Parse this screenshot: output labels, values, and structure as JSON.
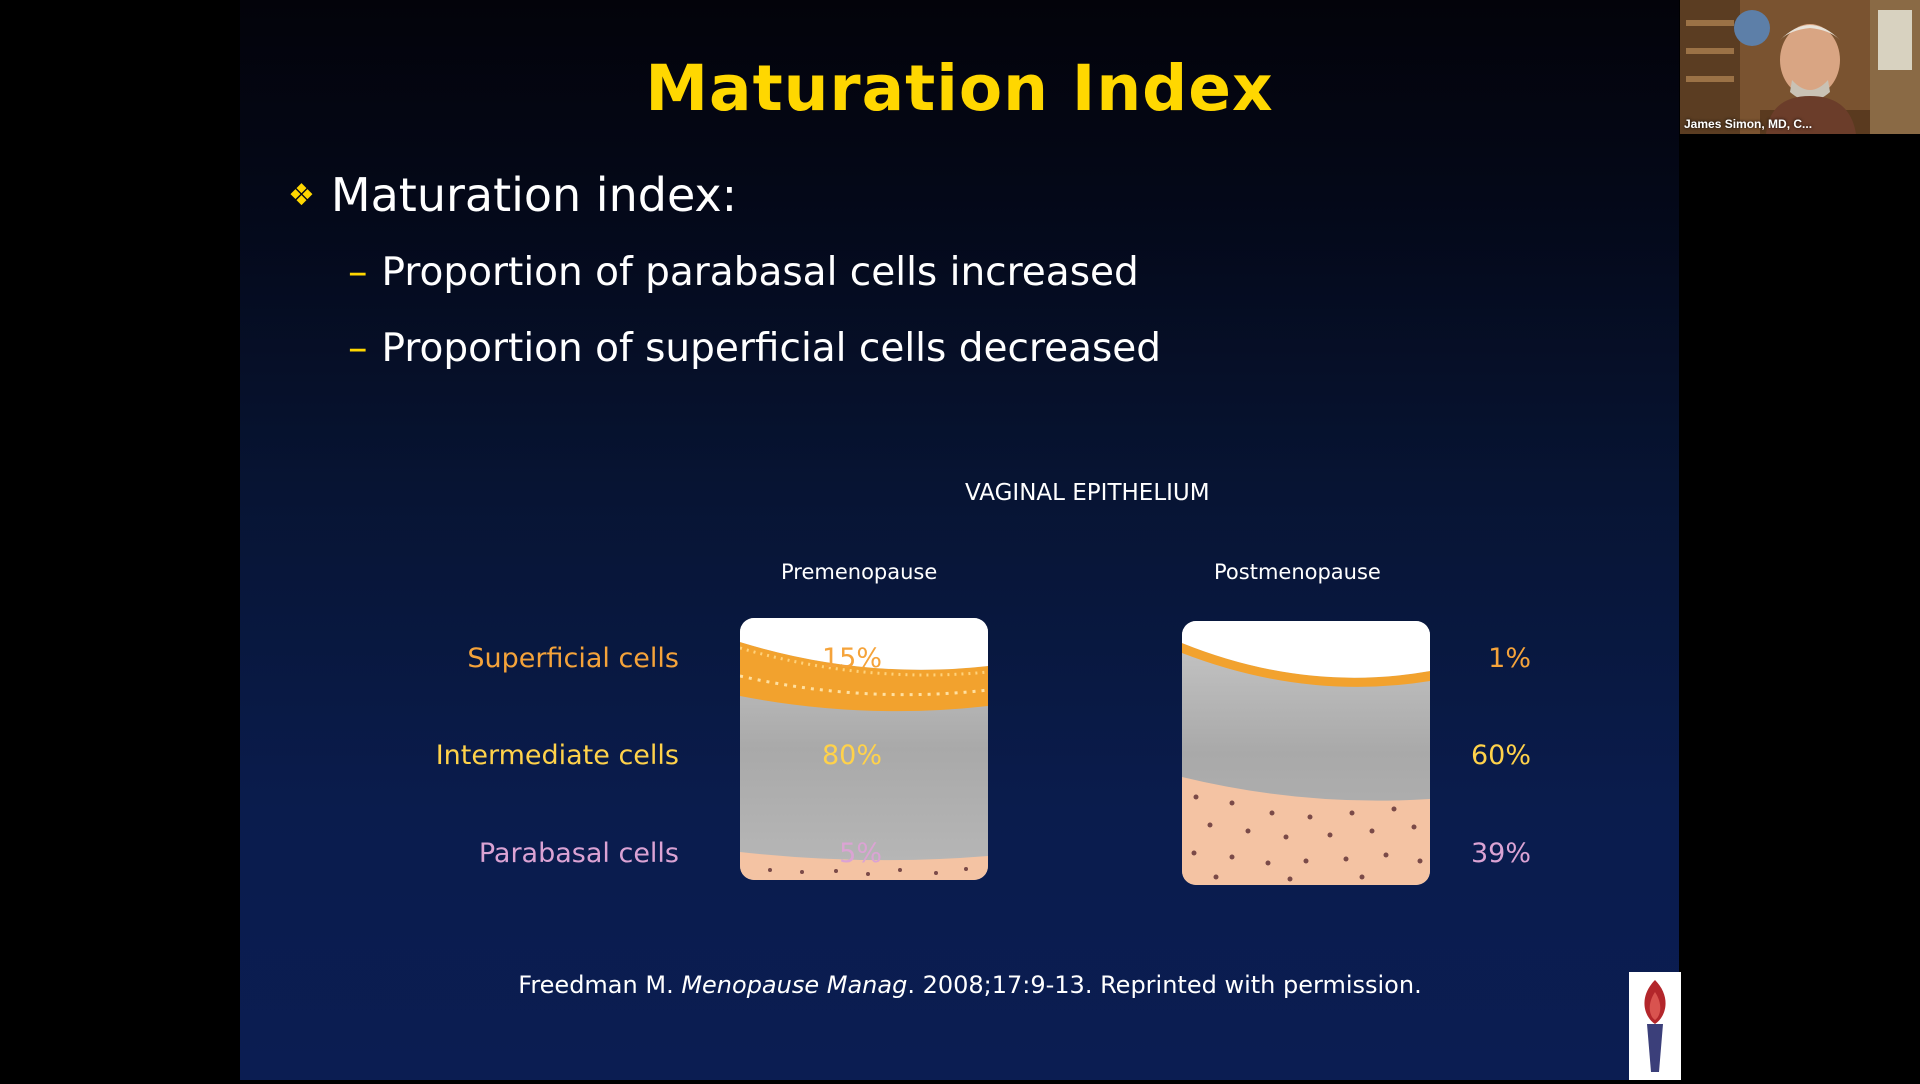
{
  "slide": {
    "title": "Maturation Index",
    "bullet": "Maturation index:",
    "sub_bullets": [
      "Proportion of parabasal cells increased",
      "Proportion of superficial cells decreased"
    ],
    "figure": {
      "title": "VAGINAL EPITHELIUM",
      "columns": [
        "Premenopause",
        "Postmenopause"
      ],
      "rows": [
        {
          "label": "Superficial cells",
          "pre": "15%",
          "post": "1%"
        },
        {
          "label": "Intermediate cells",
          "pre": "80%",
          "post": "60%"
        },
        {
          "label": "Parabasal cells",
          "pre": "5%",
          "post": "39%"
        }
      ]
    },
    "citation": {
      "author": "Freedman M. ",
      "journal": "Menopause Manag",
      "rest": ". 2008;17:9-13. Reprinted with permission."
    },
    "colors": {
      "title": "#ffd700",
      "superficial": "#f5a33a",
      "intermediate": "#ffd24a",
      "parabasal": "#dba3d4"
    }
  },
  "webcam": {
    "participant_name": "James Simon, MD, C..."
  },
  "icons": [
    "diamond-bullet-icon",
    "torch-logo-icon"
  ]
}
